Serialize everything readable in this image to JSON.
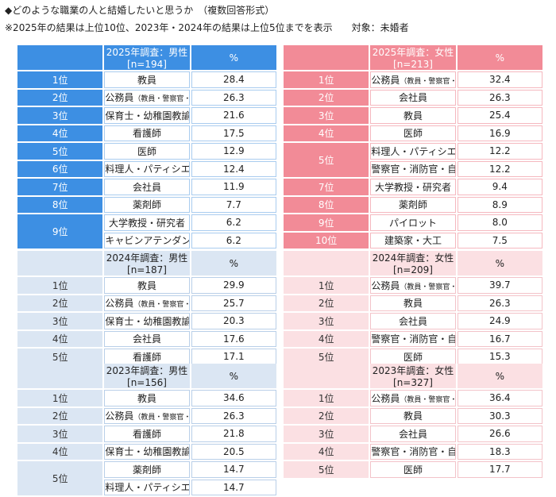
{
  "header": {
    "title": "◆どのような職業の人と結婚したいと思うか　（複数回答形式）",
    "note": "※2025年の結果は上位10位、2023年・2024年の結果は上位5位までを表示",
    "target": "対象：未婚者"
  },
  "tables": [
    {
      "title": "2025年調査：男性[n=194]",
      "pct_header": "%",
      "rows": [
        {
          "rank": "1位",
          "job": "教員",
          "pct": "28.4"
        },
        {
          "rank": "2位",
          "job": "公務員",
          "note": "（教員・警察官・消防官・自衛官除く）",
          "pct": "26.3"
        },
        {
          "rank": "3位",
          "job": "保育士・幼稚園教諭",
          "pct": "21.6"
        },
        {
          "rank": "4位",
          "job": "看護師",
          "pct": "17.5"
        },
        {
          "rank": "5位",
          "job": "医師",
          "pct": "12.9"
        },
        {
          "rank": "6位",
          "job": "料理人・パティシエ",
          "pct": "12.4"
        },
        {
          "rank": "7位",
          "job": "会社員",
          "pct": "11.9"
        },
        {
          "rank": "8位",
          "job": "薬剤師",
          "pct": "7.7"
        },
        {
          "rank": "9位",
          "job": "大学教授・研究者",
          "pct": "6.2"
        },
        {
          "rank": null,
          "job": "キャビンアテンダント",
          "pct": "6.2"
        }
      ]
    },
    {
      "title": "2025年調査：女性[n=213]",
      "pct_header": "%",
      "rows": [
        {
          "rank": "1位",
          "job": "公務員",
          "note": "（教員・警察官・消防官・自衛官除く）",
          "pct": "32.4"
        },
        {
          "rank": "2位",
          "job": "会社員",
          "pct": "26.3"
        },
        {
          "rank": "3位",
          "job": "教員",
          "pct": "25.4"
        },
        {
          "rank": "4位",
          "job": "医師",
          "pct": "16.9"
        },
        {
          "rank": "5位",
          "job": "料理人・パティシエ",
          "pct": "12.2"
        },
        {
          "rank": null,
          "job": "警察官・消防官・自衛官",
          "pct": "12.2"
        },
        {
          "rank": "7位",
          "job": "大学教授・研究者",
          "pct": "9.4"
        },
        {
          "rank": "8位",
          "job": "薬剤師",
          "pct": "8.9"
        },
        {
          "rank": "9位",
          "job": "パイロット",
          "pct": "8.0"
        },
        {
          "rank": "10位",
          "job": "建築家・大工",
          "pct": "7.5"
        }
      ]
    },
    {
      "title": "2024年調査：男性[n=187]",
      "pct_header": "%",
      "rows": [
        {
          "rank": "1位",
          "job": "教員",
          "pct": "29.9"
        },
        {
          "rank": "2位",
          "job": "公務員",
          "note": "（教員・警察官・消防官・自衛官除く）",
          "pct": "25.7"
        },
        {
          "rank": "3位",
          "job": "保育士・幼稚園教諭",
          "pct": "20.3"
        },
        {
          "rank": "4位",
          "job": "会社員",
          "pct": "17.6"
        },
        {
          "rank": "5位",
          "job": "看護師",
          "pct": "17.1"
        }
      ]
    },
    {
      "title": "2024年調査：女性[n=209]",
      "pct_header": "%",
      "rows": [
        {
          "rank": "1位",
          "job": "公務員",
          "note": "（教員・警察官・消防官・自衛官除く）",
          "pct": "39.7"
        },
        {
          "rank": "2位",
          "job": "教員",
          "pct": "26.3"
        },
        {
          "rank": "3位",
          "job": "会社員",
          "pct": "24.9"
        },
        {
          "rank": "4位",
          "job": "警察官・消防官・自衛官",
          "pct": "16.7"
        },
        {
          "rank": "5位",
          "job": "医師",
          "pct": "15.3"
        }
      ]
    },
    {
      "title": "2023年調査：男性[n=156]",
      "pct_header": "%",
      "rows": [
        {
          "rank": "1位",
          "job": "教員",
          "pct": "34.6"
        },
        {
          "rank": "2位",
          "job": "公務員",
          "note": "（教員・警察官・消防官・自衛官除く）",
          "pct": "26.3"
        },
        {
          "rank": "3位",
          "job": "看護師",
          "pct": "21.8"
        },
        {
          "rank": "4位",
          "job": "保育士・幼稚園教諭",
          "pct": "20.5"
        },
        {
          "rank": "5位",
          "job": "薬剤師",
          "pct": "14.7"
        },
        {
          "rank": null,
          "job": "料理人・パティシエ",
          "pct": "14.7"
        }
      ]
    },
    {
      "title": "2023年調査：女性[n=327]",
      "pct_header": "%",
      "rows": [
        {
          "rank": "1位",
          "job": "公務員",
          "note": "（教員・警察官・消防官・自衛官除く）",
          "pct": "36.4"
        },
        {
          "rank": "2位",
          "job": "教員",
          "pct": "30.3"
        },
        {
          "rank": "3位",
          "job": "会社員",
          "pct": "26.6"
        },
        {
          "rank": "4位",
          "job": "警察官・消防官・自衛官",
          "pct": "18.3"
        },
        {
          "rank": "5位",
          "job": "医師",
          "pct": "17.7"
        }
      ]
    }
  ]
}
